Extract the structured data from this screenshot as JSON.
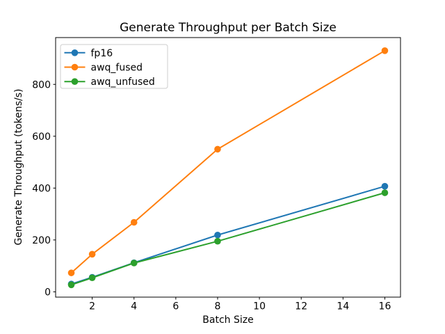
{
  "chart_data": {
    "type": "line",
    "title": "Generate Throughput per Batch Size",
    "xlabel": "Batch Size",
    "ylabel": "Generate Throughput (tokens/s)",
    "x": [
      1,
      2,
      4,
      8,
      16
    ],
    "series": [
      {
        "name": "fp16",
        "color": "#1f77b4",
        "values": [
          30,
          56,
          112,
          219,
          407
        ]
      },
      {
        "name": "awq_fused",
        "color": "#ff7f0e",
        "values": [
          73,
          145,
          268,
          550,
          930
        ]
      },
      {
        "name": "awq_unfused",
        "color": "#2ca02c",
        "values": [
          27,
          54,
          111,
          195,
          382
        ]
      }
    ],
    "xticks": [
      2,
      4,
      6,
      8,
      10,
      12,
      14,
      16
    ],
    "yticks": [
      0,
      200,
      400,
      600,
      800
    ],
    "xlim": [
      0.25,
      16.75
    ],
    "ylim": [
      -20.5,
      980.5
    ],
    "grid": false,
    "legend_position": "upper left",
    "marker": "o",
    "axis_color": "#000000",
    "background_color": "#ffffff",
    "legend_border_color": "#cccccc"
  }
}
